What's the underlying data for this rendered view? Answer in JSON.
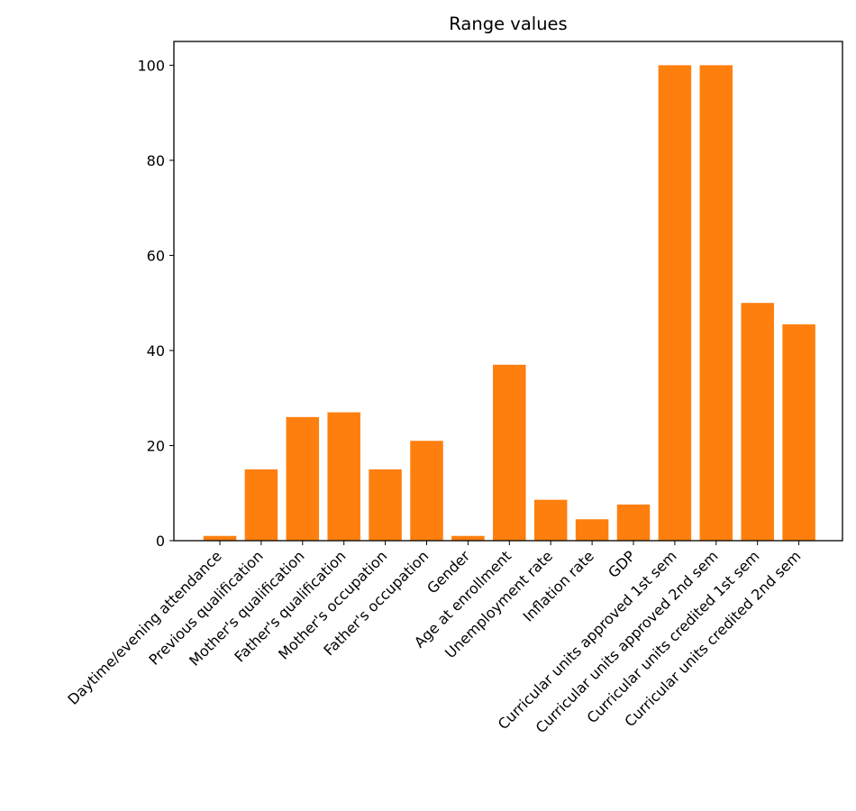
{
  "chart_data": {
    "type": "bar",
    "title": "Range values",
    "xlabel": "",
    "ylabel": "",
    "categories": [
      "Daytime/evening attendance",
      "Previous qualification",
      "Mother's qualification",
      "Father's qualification",
      "Mother's occupation",
      "Father's occupation",
      "Gender",
      "Age at enrollment",
      "Unemployment rate",
      "Inflation rate",
      "GDP",
      "Curricular units approved 1st sem",
      "Curricular units approved 2nd sem",
      "Curricular units credited 1st sem",
      "Curricular units credited 2nd sem"
    ],
    "values": [
      1,
      15,
      26,
      27,
      15,
      21,
      1,
      37,
      8.6,
      4.5,
      7.6,
      100,
      100,
      50,
      45.5
    ],
    "ylim": [
      0,
      105
    ],
    "yticks": [
      0,
      20,
      40,
      60,
      80,
      100
    ],
    "bar_color": "#ff7f0e",
    "grid": false,
    "legend": "none"
  }
}
